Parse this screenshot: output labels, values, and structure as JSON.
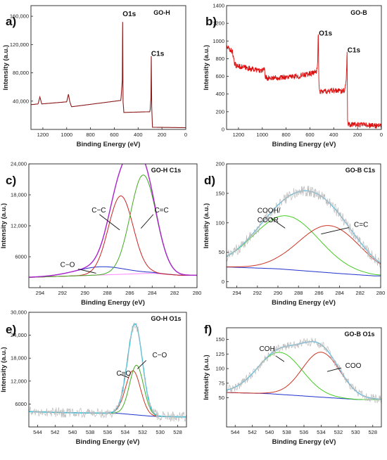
{
  "chart_data": [
    {
      "id": "a",
      "panel_label": "a)",
      "type": "line",
      "title": "GO-H",
      "xlabel": "Binding Energy (eV)",
      "ylabel": "Intensity (a.u.)",
      "xlim": [
        1300,
        0
      ],
      "ylim": [
        0,
        175000
      ],
      "xticks": [
        1200,
        1000,
        800,
        600,
        400,
        200,
        0
      ],
      "yticks": [
        40000,
        80000,
        120000,
        160000
      ],
      "ytick_labels": [
        "40,000",
        "80,000",
        "120,000",
        "160,000"
      ],
      "annotations": [
        {
          "text": "O1s",
          "x": 530,
          "y": 160000,
          "bold": true
        },
        {
          "text": "C1s",
          "x": 290,
          "y": 104000,
          "bold": true
        }
      ],
      "series": [
        {
          "style": "survey",
          "color": "#8b1a1a",
          "x": [
            1300,
            1240,
            1225,
            1210,
            1000,
            985,
            975,
            960,
            545,
            533,
            530,
            527,
            520,
            300,
            292,
            289,
            286,
            280,
            0
          ],
          "y": [
            35000,
            36000,
            46000,
            36000,
            39000,
            50000,
            40000,
            32000,
            41000,
            70000,
            162000,
            40000,
            24000,
            25000,
            45000,
            109000,
            32000,
            3000,
            2500
          ]
        }
      ]
    },
    {
      "id": "b",
      "panel_label": "b)",
      "type": "line",
      "title": "GO-B",
      "xlabel": "Binding Energy (eV)",
      "ylabel": "Intensity (a.u.)",
      "xlim": [
        1300,
        0
      ],
      "ylim": [
        0,
        1400
      ],
      "xticks": [
        1200,
        1000,
        800,
        600,
        400,
        200,
        0
      ],
      "yticks": [
        0,
        200,
        400,
        600,
        800,
        1000,
        1200,
        1400
      ],
      "ytick_labels": [
        "0",
        "200",
        "400",
        "600",
        "800",
        "1000",
        "1200",
        "1400"
      ],
      "annotations": [
        {
          "text": "O1s",
          "x": 525,
          "y": 1060,
          "bold": true
        },
        {
          "text": "C1s",
          "x": 285,
          "y": 870,
          "bold": true
        }
      ],
      "series": [
        {
          "style": "survey_noisy",
          "color": "#dd1111",
          "x": [
            1300,
            1250,
            1235,
            1220,
            1000,
            985,
            975,
            960,
            700,
            545,
            535,
            530,
            525,
            520,
            310,
            295,
            288,
            284,
            280,
            0
          ],
          "y": [
            930,
            880,
            740,
            720,
            660,
            700,
            600,
            580,
            600,
            650,
            750,
            1180,
            520,
            430,
            440,
            560,
            900,
            100,
            60,
            40
          ]
        }
      ]
    },
    {
      "id": "c",
      "panel_label": "c)",
      "type": "line",
      "title": "GO-H C1s",
      "xlabel": "Binding Energy (eV)",
      "ylabel": "Intensity (a.u.)",
      "xlim": [
        295,
        280
      ],
      "ylim": [
        0,
        24000
      ],
      "xticks": [
        294,
        292,
        290,
        288,
        286,
        284,
        282,
        280
      ],
      "yticks": [
        6000,
        12000,
        18000,
        24000
      ],
      "ytick_labels": [
        "6000",
        "12,000",
        "18,000",
        "24,000"
      ],
      "annotations": [
        {
          "text": "C−C",
          "x": 289.4,
          "y": 14600
        },
        {
          "text": "C=C",
          "x": 283.8,
          "y": 14600
        },
        {
          "text": "C−O",
          "x": 292.2,
          "y": 4000
        }
      ],
      "series": [
        {
          "style": "baseline",
          "color": "#ff88ff",
          "points": [
            [
              295,
              2000
            ],
            [
              288,
              2500
            ],
            [
              284,
              2800
            ],
            [
              281.5,
              2400
            ]
          ]
        },
        {
          "style": "peak",
          "color": "#2233cc",
          "center": 288.6,
          "amplitude": 1600,
          "width": 2.2
        },
        {
          "style": "peak",
          "color": "#cc2222",
          "center": 286.8,
          "amplitude": 15200,
          "width": 1.1
        },
        {
          "style": "peak",
          "color": "#44aa22",
          "center": 284.8,
          "amplitude": 19100,
          "width": 1.15
        },
        {
          "style": "envelope",
          "color": "#aa22cc"
        }
      ]
    },
    {
      "id": "d",
      "panel_label": "d)",
      "type": "line",
      "title": "GO-B C1s",
      "xlabel": "Binding Energy (eV)",
      "ylabel": "Intensity (a.u.)",
      "xlim": [
        295,
        280
      ],
      "ylim": [
        -10,
        200
      ],
      "xticks": [
        294,
        292,
        290,
        288,
        286,
        284,
        282,
        280
      ],
      "yticks": [
        0,
        50,
        100,
        150,
        200
      ],
      "ytick_labels": [
        "0",
        "50",
        "100",
        "150",
        "200"
      ],
      "annotations": [
        {
          "text": "COOH/",
          "x": 292.0,
          "y": 117
        },
        {
          "text": "COOR",
          "x": 292.0,
          "y": 101
        },
        {
          "text": "C=C",
          "x": 282.6,
          "y": 93
        }
      ],
      "series": [
        {
          "style": "baseline",
          "color": "#2233cc",
          "points": [
            [
              294.8,
              25
            ],
            [
              290,
              22
            ],
            [
              284,
              14
            ],
            [
              280.6,
              10
            ]
          ]
        },
        {
          "style": "peak",
          "color": "#44cc22",
          "center": 289.2,
          "amplitude": 91,
          "width": 3.2
        },
        {
          "style": "peak",
          "color": "#cc3322",
          "center": 285.0,
          "amplitude": 80,
          "width": 3.0
        },
        {
          "style": "envelope",
          "color": "#66bbdd"
        },
        {
          "style": "noisy_data",
          "color": "#bbbbbb"
        }
      ]
    },
    {
      "id": "e",
      "panel_label": "e)",
      "type": "line",
      "title": "GO-H O1s",
      "xlabel": "Binding Energy (eV)",
      "ylabel": "Intensity (a.u.)",
      "xlim": [
        545,
        527
      ],
      "ylim": [
        0,
        30000
      ],
      "xticks": [
        544,
        542,
        540,
        538,
        536,
        534,
        532,
        530,
        528
      ],
      "yticks": [
        6000,
        12000,
        18000,
        24000,
        30000
      ],
      "ytick_labels": [
        "6000",
        "12,000",
        "18,000",
        "24,000",
        "30,000"
      ],
      "annotations": [
        {
          "text": "C=O",
          "x": 535.0,
          "y": 13400
        },
        {
          "text": "C−O",
          "x": 530.9,
          "y": 18200
        }
      ],
      "series": [
        {
          "style": "baseline",
          "color": "#2233cc",
          "points": [
            [
              545,
              4000
            ],
            [
              540,
              3700
            ],
            [
              535,
              3600
            ],
            [
              531,
              2800
            ],
            [
              527,
              2600
            ]
          ]
        },
        {
          "style": "peak",
          "color": "#cc3322",
          "center": 533.1,
          "amplitude": 11500,
          "width": 0.85
        },
        {
          "style": "peak",
          "color": "#44aa22",
          "center": 532.7,
          "amplitude": 13000,
          "width": 0.8
        },
        {
          "style": "envelope",
          "color": "#22bbdd"
        },
        {
          "style": "noisy_data",
          "color": "#bbbbbb"
        }
      ]
    },
    {
      "id": "f",
      "panel_label": "f)",
      "type": "line",
      "title": "GO-B O1s",
      "xlabel": "Binding Energy (eV)",
      "ylabel": "Intensity (a.u.)",
      "xlim": [
        545,
        527
      ],
      "ylim": [
        0,
        170
      ],
      "xticks": [
        544,
        542,
        540,
        538,
        536,
        534,
        532,
        530,
        528
      ],
      "yticks": [
        50,
        75,
        100,
        125,
        150
      ],
      "ytick_labels": [
        "50",
        "75",
        "100",
        "125",
        "150"
      ],
      "annotations": [
        {
          "text": "COH",
          "x": 541.2,
          "y": 130
        },
        {
          "text": "COO",
          "x": 531.2,
          "y": 101
        }
      ],
      "series": [
        {
          "style": "baseline",
          "color": "#2233cc",
          "points": [
            [
              544.8,
              59
            ],
            [
              540,
              57
            ],
            [
              535,
              52
            ],
            [
              529.8,
              47
            ]
          ]
        },
        {
          "style": "peak",
          "color": "#44cc22",
          "center": 538.8,
          "amplitude": 72,
          "width": 2.6
        },
        {
          "style": "peak",
          "color": "#cc3322",
          "center": 534.0,
          "amplitude": 77,
          "width": 2.2
        },
        {
          "style": "envelope",
          "color": "#66bbdd"
        },
        {
          "style": "noisy_data",
          "color": "#bbbbbb"
        }
      ]
    }
  ]
}
